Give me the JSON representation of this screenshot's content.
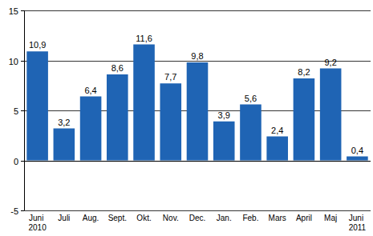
{
  "chart_data": {
    "type": "bar",
    "categories": [
      "Juni 2010",
      "Juli",
      "Aug.",
      "Sept.",
      "Okt.",
      "Nov.",
      "Dec.",
      "Jan.",
      "Feb.",
      "Mars",
      "April",
      "Maj",
      "Juni 2011"
    ],
    "values": [
      10.9,
      3.2,
      6.4,
      8.6,
      11.6,
      7.7,
      9.8,
      3.9,
      5.6,
      2.4,
      8.2,
      9.2,
      0.4
    ],
    "value_labels": [
      "10,9",
      "3,2",
      "6,4",
      "8,6",
      "11,6",
      "7,7",
      "9,8",
      "3,9",
      "5,6",
      "2,4",
      "8,2",
      "9,2",
      "0,4"
    ],
    "color": "#1f64b4",
    "ylim": [
      -5,
      15
    ],
    "yticks": [
      -5,
      0,
      5,
      10,
      15
    ],
    "grid": true,
    "data_labels": true
  }
}
